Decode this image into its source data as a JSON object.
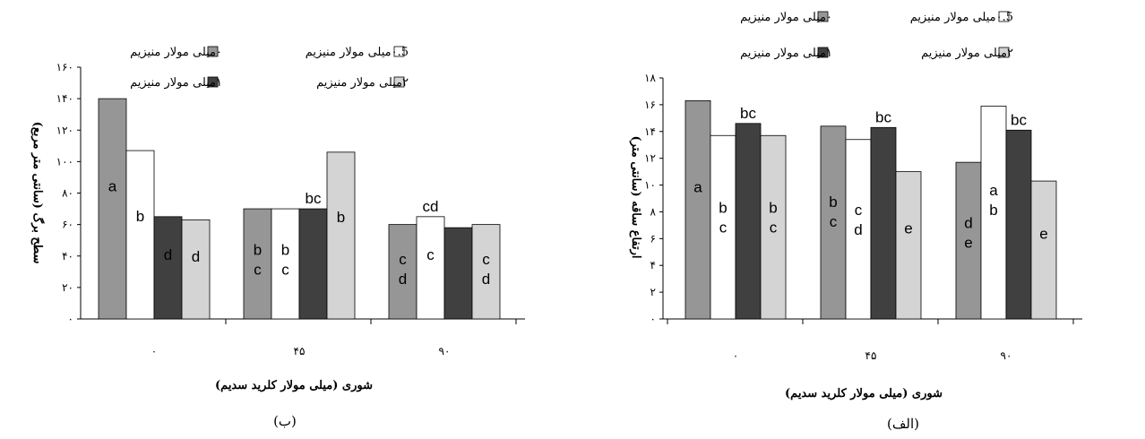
{
  "chart_data": [
    {
      "type": "bar",
      "panel_label": "(ب)",
      "title": "",
      "xlabel": "شوری (میلی مولار کلرید سدیم)",
      "ylabel": "سطح برگ (سانتی متر مربع)",
      "ylim": [
        0,
        160
      ],
      "yticks": [
        {
          "value": 0,
          "label": "۰"
        },
        {
          "value": 20,
          "label": "۲۰"
        },
        {
          "value": 40,
          "label": "۴۰"
        },
        {
          "value": 60,
          "label": "۶۰"
        },
        {
          "value": 80,
          "label": "۸۰"
        },
        {
          "value": 100,
          "label": "۱۰۰"
        },
        {
          "value": 120,
          "label": "۱۲۰"
        },
        {
          "value": 140,
          "label": "۱۴۰"
        },
        {
          "value": 160,
          "label": "۱۶۰"
        }
      ],
      "categories": [
        "۰",
        "۴۵",
        "۹۰"
      ],
      "series": [
        {
          "name": "۰میلی مولار منیزیم",
          "color": "#969696",
          "values": [
            140,
            70,
            60
          ],
          "letters": [
            "a",
            "b c",
            "c d"
          ]
        },
        {
          "name": "۰.5میلی مولار منیزیم",
          "color": "#ffffff",
          "values": [
            107,
            70,
            65
          ],
          "letters": [
            "b",
            "b c",
            "c"
          ]
        },
        {
          "name": "۱میلی مولار منیزیم",
          "color": "#404040",
          "values": [
            65,
            70,
            58
          ],
          "letters": [
            "d",
            "",
            ""
          ]
        },
        {
          "name": "۲میلی مولار منیزیم",
          "color": "#d4d4d4",
          "values": [
            63,
            106,
            60
          ],
          "letters": [
            "d",
            "b",
            "c d"
          ]
        }
      ],
      "top_letters": [
        {
          "category": 1,
          "series": 2,
          "text": "bc"
        },
        {
          "category": 2,
          "series": 1,
          "text": "cd"
        }
      ],
      "legend_position": "top-right",
      "grid": false
    },
    {
      "type": "bar",
      "panel_label": "(الف)",
      "title": "",
      "xlabel": "شوری (میلی مولار کلرید سدیم)",
      "ylabel": "ارتفاع ساقه (سانتی متر)",
      "ylim": [
        0,
        18
      ],
      "yticks": [
        {
          "value": 0,
          "label": "۰"
        },
        {
          "value": 2,
          "label": "۲"
        },
        {
          "value": 4,
          "label": "۴"
        },
        {
          "value": 6,
          "label": "۶"
        },
        {
          "value": 8,
          "label": "۸"
        },
        {
          "value": 10,
          "label": "۱۰"
        },
        {
          "value": 12,
          "label": "۱۲"
        },
        {
          "value": 14,
          "label": "۱۴"
        },
        {
          "value": 16,
          "label": "۱۶"
        },
        {
          "value": 18,
          "label": "۱۸"
        }
      ],
      "categories": [
        "۰",
        "۴۵",
        "۹۰"
      ],
      "series": [
        {
          "name": "۰میلی مولار منیزیم",
          "color": "#969696",
          "values": [
            16.3,
            14.4,
            11.7
          ],
          "letters": [
            "a",
            "b c",
            "d e"
          ]
        },
        {
          "name": "۰.5میلی مولار منیزیم",
          "color": "#ffffff",
          "values": [
            13.7,
            13.4,
            15.9
          ],
          "letters": [
            "b c",
            "c d",
            "a b"
          ]
        },
        {
          "name": "۱میلی مولار منیزیم",
          "color": "#404040",
          "values": [
            14.6,
            14.3,
            14.1
          ],
          "letters": [
            "",
            "",
            ""
          ]
        },
        {
          "name": "۲میلی مولار منیزیم",
          "color": "#d4d4d4",
          "values": [
            13.7,
            11,
            10.3
          ],
          "letters": [
            "b c",
            "e",
            "e"
          ]
        }
      ],
      "top_letters": [
        {
          "category": 0,
          "series": 2,
          "text": "bc"
        },
        {
          "category": 1,
          "series": 2,
          "text": "bc"
        },
        {
          "category": 2,
          "series": 2,
          "text": "bc"
        }
      ],
      "legend_position": "top-right",
      "grid": false
    }
  ]
}
